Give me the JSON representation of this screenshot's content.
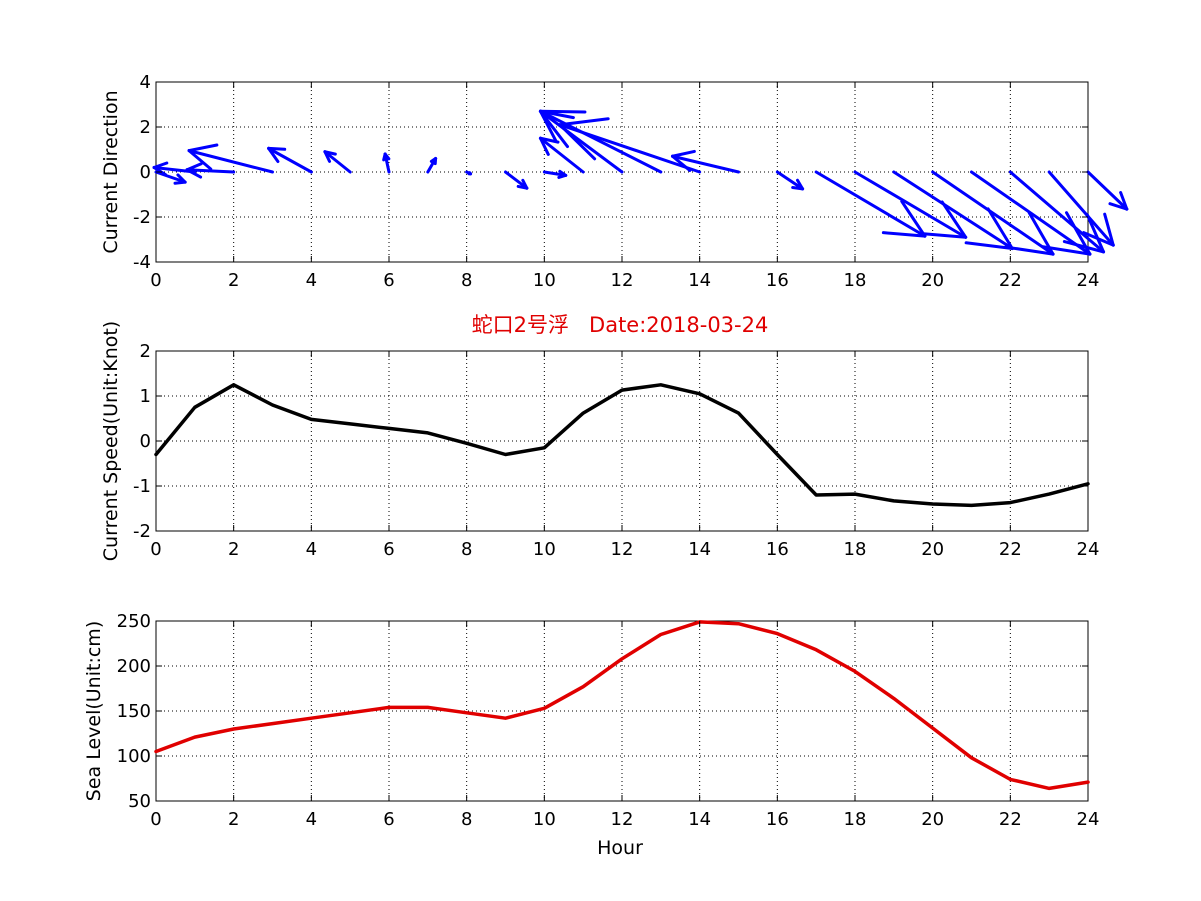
{
  "title": "蛇口2号浮   Date:2018-03-24",
  "chart_data": [
    {
      "id": "direction",
      "type": "quiver",
      "ylabel": "Current Direction",
      "xlabel": "",
      "xlim": [
        0,
        24
      ],
      "ylim": [
        -4,
        4
      ],
      "xticks": [
        0,
        2,
        4,
        6,
        8,
        10,
        12,
        14,
        16,
        18,
        20,
        22,
        24
      ],
      "yticks": [
        -4,
        -2,
        0,
        2,
        4
      ],
      "grid": true,
      "color": "#0000ff",
      "vectors": [
        {
          "x": 0,
          "u": 0.75,
          "v": -0.45
        },
        {
          "x": 1,
          "u": -1.05,
          "v": 0.2
        },
        {
          "x": 2,
          "u": -1.2,
          "v": 0.1
        },
        {
          "x": 3,
          "u": -2.15,
          "v": 0.95
        },
        {
          "x": 4,
          "u": -1.1,
          "v": 1.05
        },
        {
          "x": 5,
          "u": -0.65,
          "v": 0.9
        },
        {
          "x": 6,
          "u": -0.1,
          "v": 0.8
        },
        {
          "x": 7,
          "u": 0.2,
          "v": 0.6
        },
        {
          "x": 8,
          "u": 0.1,
          "v": -0.08
        },
        {
          "x": 9,
          "u": 0.55,
          "v": -0.72
        },
        {
          "x": 10,
          "u": 0.55,
          "v": -0.15
        },
        {
          "x": 11,
          "u": -1.1,
          "v": 1.5
        },
        {
          "x": 12,
          "u": -2.1,
          "v": 2.7
        },
        {
          "x": 13,
          "u": -3.1,
          "v": 2.7
        },
        {
          "x": 14,
          "u": -3.6,
          "v": 2.1
        },
        {
          "x": 15,
          "u": -1.7,
          "v": 0.7
        },
        {
          "x": 16,
          "u": 0.65,
          "v": -0.75
        },
        {
          "x": 17,
          "u": 2.8,
          "v": -2.85
        },
        {
          "x": 18,
          "u": 2.85,
          "v": -2.9
        },
        {
          "x": 19,
          "u": 3.05,
          "v": -3.4
        },
        {
          "x": 20,
          "u": 3.1,
          "v": -3.65
        },
        {
          "x": 21,
          "u": 3.05,
          "v": -3.65
        },
        {
          "x": 22,
          "u": 2.4,
          "v": -3.55
        },
        {
          "x": 23,
          "u": 1.65,
          "v": -3.25
        },
        {
          "x": 24,
          "u": 1.0,
          "v": -1.65
        }
      ]
    },
    {
      "id": "speed",
      "type": "line",
      "ylabel": "Current Speed(Unit:Knot)",
      "xlabel": "",
      "xlim": [
        0,
        24
      ],
      "ylim": [
        -2,
        2
      ],
      "xticks": [
        0,
        2,
        4,
        6,
        8,
        10,
        12,
        14,
        16,
        18,
        20,
        22,
        24
      ],
      "yticks": [
        -2,
        -1,
        0,
        1,
        2
      ],
      "grid": true,
      "color": "#000000",
      "x": [
        0,
        1,
        2,
        3,
        4,
        5,
        6,
        7,
        8,
        9,
        10,
        11,
        12,
        13,
        14,
        15,
        16,
        17,
        18,
        19,
        20,
        21,
        22,
        23,
        24
      ],
      "y": [
        -0.3,
        0.75,
        1.25,
        0.8,
        0.48,
        0.38,
        0.28,
        0.18,
        -0.05,
        -0.3,
        -0.15,
        0.62,
        1.13,
        1.25,
        1.05,
        0.62,
        -0.3,
        -1.2,
        -1.18,
        -1.33,
        -1.4,
        -1.43,
        -1.37,
        -1.18,
        -0.95
      ]
    },
    {
      "id": "sealevel",
      "type": "line",
      "ylabel": "Sea Level(Unit:cm)",
      "xlabel": "Hour",
      "xlim": [
        0,
        24
      ],
      "ylim": [
        50,
        250
      ],
      "xticks": [
        0,
        2,
        4,
        6,
        8,
        10,
        12,
        14,
        16,
        18,
        20,
        22,
        24
      ],
      "yticks": [
        50,
        100,
        150,
        200,
        250
      ],
      "grid": true,
      "color": "#e00000",
      "x": [
        0,
        1,
        2,
        3,
        4,
        5,
        6,
        7,
        8,
        9,
        10,
        11,
        12,
        13,
        14,
        15,
        16,
        17,
        18,
        19,
        20,
        21,
        22,
        23,
        24
      ],
      "y": [
        105,
        121,
        130,
        136,
        142,
        148,
        154,
        154,
        148,
        142,
        153,
        177,
        208,
        235,
        249,
        247,
        236,
        218,
        194,
        164,
        131,
        98,
        74,
        64,
        71
      ]
    }
  ]
}
